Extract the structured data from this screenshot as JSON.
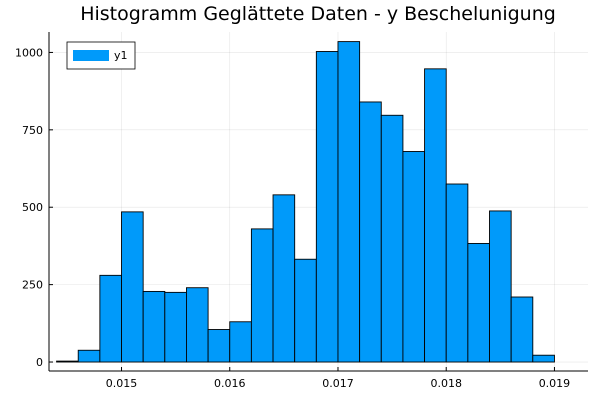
{
  "chart_data": {
    "type": "bar",
    "title": "Histogramm Geglättete Daten - y Beschelunigung",
    "xlabel": "",
    "ylabel": "",
    "bin_width": 0.0002,
    "bin_edges": [
      0.0144,
      0.0146,
      0.0148,
      0.015,
      0.0152,
      0.0154,
      0.0156,
      0.0158,
      0.016,
      0.0162,
      0.0164,
      0.0166,
      0.0168,
      0.017,
      0.0172,
      0.0174,
      0.0176,
      0.0178,
      0.018,
      0.0182,
      0.0184,
      0.0186,
      0.0188,
      0.019
    ],
    "series": [
      {
        "name": "y1",
        "color": "#009AFA",
        "values": [
          3,
          38,
          280,
          485,
          228,
          225,
          240,
          105,
          130,
          430,
          540,
          332,
          1003,
          1035,
          840,
          797,
          680,
          947,
          575,
          383,
          488,
          210,
          22
        ]
      }
    ],
    "xlim": [
      0.01433,
      0.01931
    ],
    "ylim": [
      -29,
      1066
    ],
    "xticks": [
      0.015,
      0.016,
      0.017,
      0.018,
      0.019
    ],
    "xtick_labels": [
      "0.015",
      "0.016",
      "0.017",
      "0.018",
      "0.019"
    ],
    "yticks": [
      0,
      250,
      500,
      750,
      1000
    ],
    "ytick_labels": [
      "0",
      "250",
      "500",
      "750",
      "1000"
    ],
    "grid": true,
    "legend_position": "top-left"
  }
}
